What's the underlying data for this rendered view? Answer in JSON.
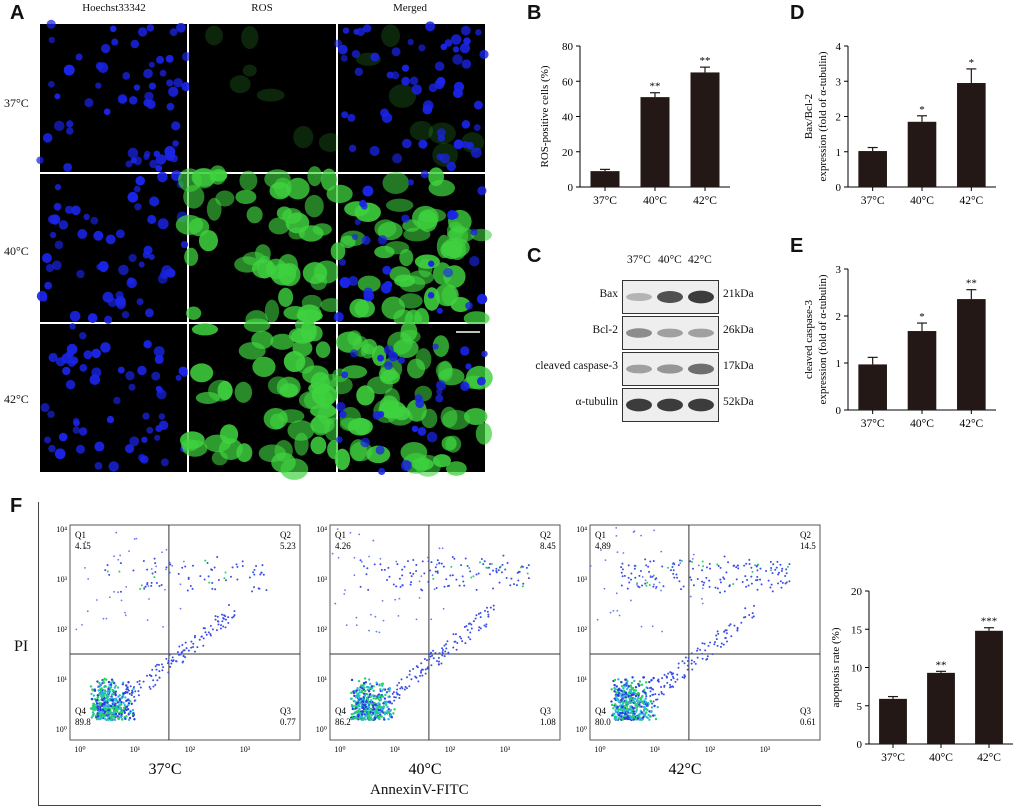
{
  "panels": {
    "A": "A",
    "B": "B",
    "C": "C",
    "D": "D",
    "E": "E",
    "F": "F"
  },
  "microscopy": {
    "columns": [
      "Hoechst33342",
      "ROS",
      "Merged"
    ],
    "rows": [
      "37°C",
      "40°C",
      "42°C"
    ],
    "colors": {
      "blue": "#1a24e6",
      "green": "#3fd23f",
      "background": "#000000"
    }
  },
  "blot": {
    "lanes": [
      "37°C",
      "40°C",
      "42°C"
    ],
    "proteins": [
      "Bax",
      "Bcl-2",
      "cleaved caspase-3",
      "α-tubulin"
    ],
    "sizes": [
      "21kDa",
      "26kDa",
      "17kDa",
      "52kDa"
    ],
    "band_intensity": [
      [
        0.25,
        0.75,
        0.85
      ],
      [
        0.45,
        0.35,
        0.35
      ],
      [
        0.35,
        0.4,
        0.6
      ],
      [
        0.85,
        0.85,
        0.85
      ]
    ]
  },
  "flow": {
    "xlabel": "AnnexinV-FITC",
    "ylabel": "PI",
    "conditions": [
      "37°C",
      "40°C",
      "42°C"
    ],
    "quadrant_names": [
      "Q1",
      "Q2",
      "Q3",
      "Q4"
    ],
    "quadrants": [
      [
        "4.15",
        "5.23",
        "0.77",
        "89.8"
      ],
      [
        "4.26",
        "8.45",
        "1.08",
        "86.2"
      ],
      [
        "4.89",
        "14.5",
        "0.61",
        "80.0"
      ]
    ],
    "x_ticks": [
      "10⁰",
      "10¹",
      "10²",
      "10³"
    ],
    "y_ticks": [
      "10⁰",
      "10¹",
      "10²",
      "10³",
      "10⁴"
    ]
  },
  "chart_data": [
    {
      "panel": "B",
      "type": "bar",
      "categories": [
        "37°C",
        "40°C",
        "42°C"
      ],
      "values": [
        9,
        51,
        65
      ],
      "errors": [
        1,
        2.5,
        3
      ],
      "significance": [
        "",
        "**",
        "**"
      ],
      "ylabel": "ROS-positive cells (%)",
      "ylim": [
        0,
        80
      ],
      "yticks": [
        "0",
        "20",
        "40",
        "60",
        "80"
      ]
    },
    {
      "panel": "D",
      "type": "bar",
      "categories": [
        "37°C",
        "40°C",
        "42°C"
      ],
      "values": [
        1.02,
        1.85,
        2.95
      ],
      "errors": [
        0.1,
        0.17,
        0.4
      ],
      "significance": [
        "",
        "*",
        "*"
      ],
      "ylabel": [
        "Bax/Bcl-2",
        "expression (fold of  α-tubulin)"
      ],
      "ylim": [
        0,
        4
      ],
      "yticks": [
        "0",
        "1",
        "2",
        "3",
        "4"
      ]
    },
    {
      "panel": "E",
      "type": "bar",
      "categories": [
        "37°C",
        "40°C",
        "42°C"
      ],
      "values": [
        0.97,
        1.68,
        2.36
      ],
      "errors": [
        0.15,
        0.17,
        0.2
      ],
      "significance": [
        "",
        "*",
        "**"
      ],
      "ylabel": [
        "cleaved caspase-3",
        "expression (fold of  α-tubulin)"
      ],
      "ylim": [
        0,
        3
      ],
      "yticks": [
        "0",
        "1",
        "2",
        "3"
      ]
    },
    {
      "panel": "F",
      "type": "bar",
      "categories": [
        "37°C",
        "40°C",
        "42°C"
      ],
      "values": [
        5.9,
        9.3,
        14.8
      ],
      "errors": [
        0.3,
        0.2,
        0.4
      ],
      "significance": [
        "",
        "**",
        "***"
      ],
      "ylabel": "apoptosis rate (%)",
      "ylim": [
        0,
        20
      ],
      "yticks": [
        "0",
        "5",
        "10",
        "15",
        "20"
      ]
    }
  ]
}
